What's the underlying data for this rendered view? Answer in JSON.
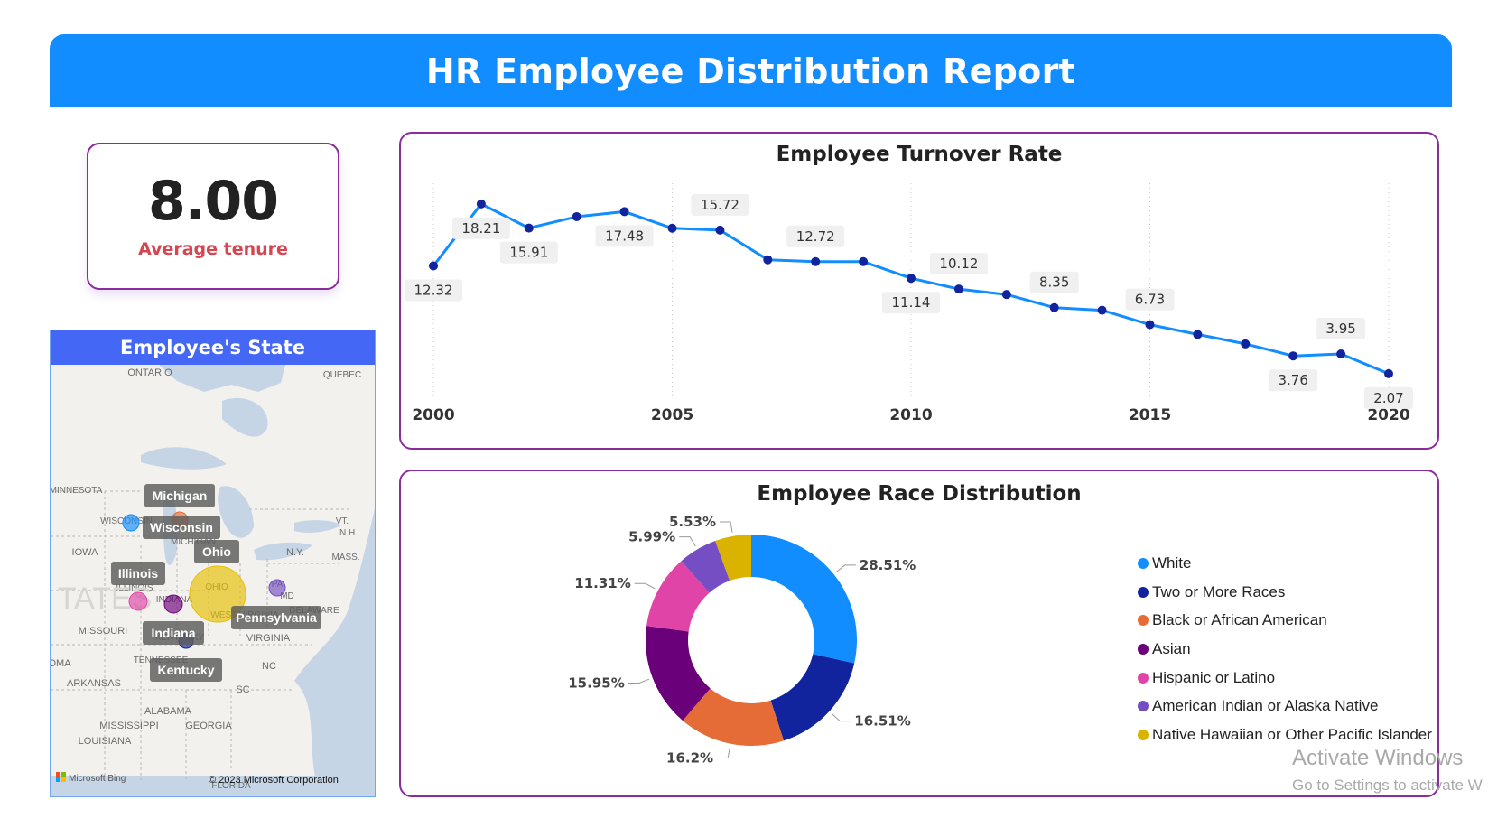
{
  "report": {
    "title": "HR Employee Distribution Report"
  },
  "kpi": {
    "value": "8.00",
    "label": "Average tenure"
  },
  "map": {
    "title": "Employee's State",
    "place_labels": [
      {
        "text": "ONTARIO"
      },
      {
        "text": "QUEBEC"
      },
      {
        "text": "MINNESOTA"
      },
      {
        "text": "WISCONSIN"
      },
      {
        "text": "MICHIGAN"
      },
      {
        "text": "IOWA"
      },
      {
        "text": "ILLINOIS"
      },
      {
        "text": "INDIANA"
      },
      {
        "text": "OHIO"
      },
      {
        "text": "PA"
      },
      {
        "text": "N.Y."
      },
      {
        "text": "VT."
      },
      {
        "text": "N.H."
      },
      {
        "text": "MASS."
      },
      {
        "text": "MD"
      },
      {
        "text": "DELAWARE"
      },
      {
        "text": "VIRGINIA"
      },
      {
        "text": "WEST VIRGINIA"
      },
      {
        "text": "KENTUCKY"
      },
      {
        "text": "MISSOURI"
      },
      {
        "text": "TENNESSEE"
      },
      {
        "text": "ARKANSAS"
      },
      {
        "text": "NC"
      },
      {
        "text": "SC"
      },
      {
        "text": "ALABAMA"
      },
      {
        "text": "MISSISSIPPI"
      },
      {
        "text": "GEORGIA"
      },
      {
        "text": "LOUISIANA"
      },
      {
        "text": "FLORIDA"
      },
      {
        "text": "OMA"
      },
      {
        "text": "TATES"
      }
    ],
    "states": [
      {
        "name": "Michigan",
        "color": "#e66c37"
      },
      {
        "name": "Wisconsin",
        "color": "#118dff"
      },
      {
        "name": "Ohio",
        "color": "#e6c000"
      },
      {
        "name": "Illinois",
        "color": "#e044a7"
      },
      {
        "name": "Indiana",
        "color": "#6b007b"
      },
      {
        "name": "Pennsylvania",
        "color": "#744ec2"
      },
      {
        "name": "Kentucky",
        "color": "#12239e"
      }
    ],
    "bing_label": "Microsoft Bing",
    "copyright": "© 2023 Microsoft Corporation"
  },
  "turnover": {
    "title": "Employee Turnover Rate",
    "line_color": "#118dff",
    "point_color": "#12239e"
  },
  "race": {
    "title": "Employee Race Distribution"
  },
  "watermark": {
    "title": "Activate Windows",
    "subtitle": "Go to Settings to activate W"
  },
  "chart_data": [
    {
      "type": "line",
      "title": "Employee Turnover Rate",
      "x": [
        2000,
        2001,
        2002,
        2003,
        2004,
        2005,
        2006,
        2007,
        2008,
        2009,
        2010,
        2011,
        2012,
        2013,
        2014,
        2015,
        2016,
        2017,
        2018,
        2019,
        2020
      ],
      "values": [
        12.32,
        18.21,
        15.91,
        17.0,
        17.48,
        15.9,
        15.72,
        12.9,
        12.72,
        12.72,
        11.14,
        10.12,
        9.6,
        8.35,
        8.1,
        6.73,
        5.8,
        4.9,
        3.76,
        3.95,
        2.07
      ],
      "data_labels": [
        {
          "x": 2000,
          "text": "12.32"
        },
        {
          "x": 2001,
          "text": "18.21"
        },
        {
          "x": 2002,
          "text": "15.91"
        },
        {
          "x": 2004,
          "text": "17.48"
        },
        {
          "x": 2006,
          "text": "15.72"
        },
        {
          "x": 2008,
          "text": "12.72"
        },
        {
          "x": 2010,
          "text": "11.14"
        },
        {
          "x": 2011,
          "text": "10.12"
        },
        {
          "x": 2013,
          "text": "8.35"
        },
        {
          "x": 2015,
          "text": "6.73"
        },
        {
          "x": 2018,
          "text": "3.76"
        },
        {
          "x": 2019,
          "text": "3.95"
        },
        {
          "x": 2020,
          "text": "2.07"
        }
      ],
      "xticks": [
        2000,
        2005,
        2010,
        2015,
        2020
      ],
      "ylim": [
        0,
        20
      ],
      "grid": "vertical-dotted",
      "xlabel": "",
      "ylabel": ""
    },
    {
      "type": "pie",
      "title": "Employee Race Distribution",
      "donut": true,
      "legend": "right",
      "slices": [
        {
          "name": "White",
          "value": 28.51,
          "label": "28.51%",
          "color": "#118dff"
        },
        {
          "name": "Two or More Races",
          "value": 16.51,
          "label": "16.51%",
          "color": "#12239e"
        },
        {
          "name": "Black or African American",
          "value": 16.2,
          "label": "16.2%",
          "color": "#e66c37"
        },
        {
          "name": "Asian",
          "value": 15.95,
          "label": "15.95%",
          "color": "#6b007b"
        },
        {
          "name": "Hispanic or Latino",
          "value": 11.31,
          "label": "11.31%",
          "color": "#e044a7"
        },
        {
          "name": "American Indian or Alaska Native",
          "value": 5.99,
          "label": "5.99%",
          "color": "#744ec2"
        },
        {
          "name": "Native Hawaiian or Other Pacific Islander",
          "value": 5.53,
          "label": "5.53%",
          "color": "#d9b300"
        }
      ]
    }
  ]
}
